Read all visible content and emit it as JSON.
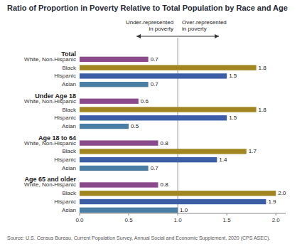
{
  "chart_data": {
    "type": "bar",
    "orientation": "horizontal",
    "title": "Ratio of Proportion in Poverty Relative to Total Population by Race and Age",
    "source": "Source: U.S. Census Bureau, Current Population Survey, Annual Social and Economic Supplement, 2020 (CPS ASEC).",
    "annotations": [
      "Under-represented\nin poverty",
      "Over-represented\nin poverty"
    ],
    "reference_line": 1.0,
    "xlim": [
      0.0,
      2.1
    ],
    "xticks": [
      {
        "value": 0.0,
        "label": "0.0"
      },
      0.5,
      {
        "value": 1.0,
        "label": "1.0"
      },
      1.5,
      {
        "value": 2.0,
        "label": "2.0"
      }
    ],
    "data_labels": true,
    "groups": [
      {
        "label": "Total",
        "categories": [
          "White, Non-Hispanic",
          "Black",
          "Hispanic",
          "Asian"
        ],
        "values": [
          0.7,
          1.8,
          1.5,
          0.7
        ],
        "value_labels": [
          "0.7",
          "1.8",
          "1.5",
          "0.7"
        ],
        "colors": [
          "#8B4A8C",
          "#A08520",
          "#3B5EA6",
          "#4A7EA5"
        ]
      },
      {
        "label": "Under Age 18",
        "categories": [
          "White, Non-Hispanic",
          "Black",
          "Hispanic",
          "Asian"
        ],
        "values": [
          0.6,
          1.8,
          1.5,
          0.5
        ],
        "value_labels": [
          "0.6",
          "1.8",
          "1.5",
          "0.5"
        ],
        "colors": [
          "#8B4A8C",
          "#A08520",
          "#3B5EA6",
          "#4A7EA5"
        ]
      },
      {
        "label": "Age 18 to 64",
        "categories": [
          "White, Non-Hispanic",
          "Black",
          "Hispanic",
          "Asian"
        ],
        "values": [
          0.8,
          1.7,
          1.4,
          0.7
        ],
        "value_labels": [
          "0.8",
          "1.7",
          "1.4",
          "0.7"
        ],
        "colors": [
          "#8B4A8C",
          "#A08520",
          "#3B5EA6",
          "#4A7EA5"
        ]
      },
      {
        "label": "Age 65 and older",
        "categories": [
          "White, Non-Hispanic",
          "Black",
          "Hispanic",
          "Asian"
        ],
        "values": [
          0.8,
          2.0,
          1.9,
          1.0
        ],
        "value_labels": [
          "0.8",
          "2.0",
          "1.9",
          "1.0"
        ],
        "colors": [
          "#8B4A8C",
          "#A08520",
          "#3B5EA6",
          "#4A7EA5"
        ]
      }
    ]
  }
}
